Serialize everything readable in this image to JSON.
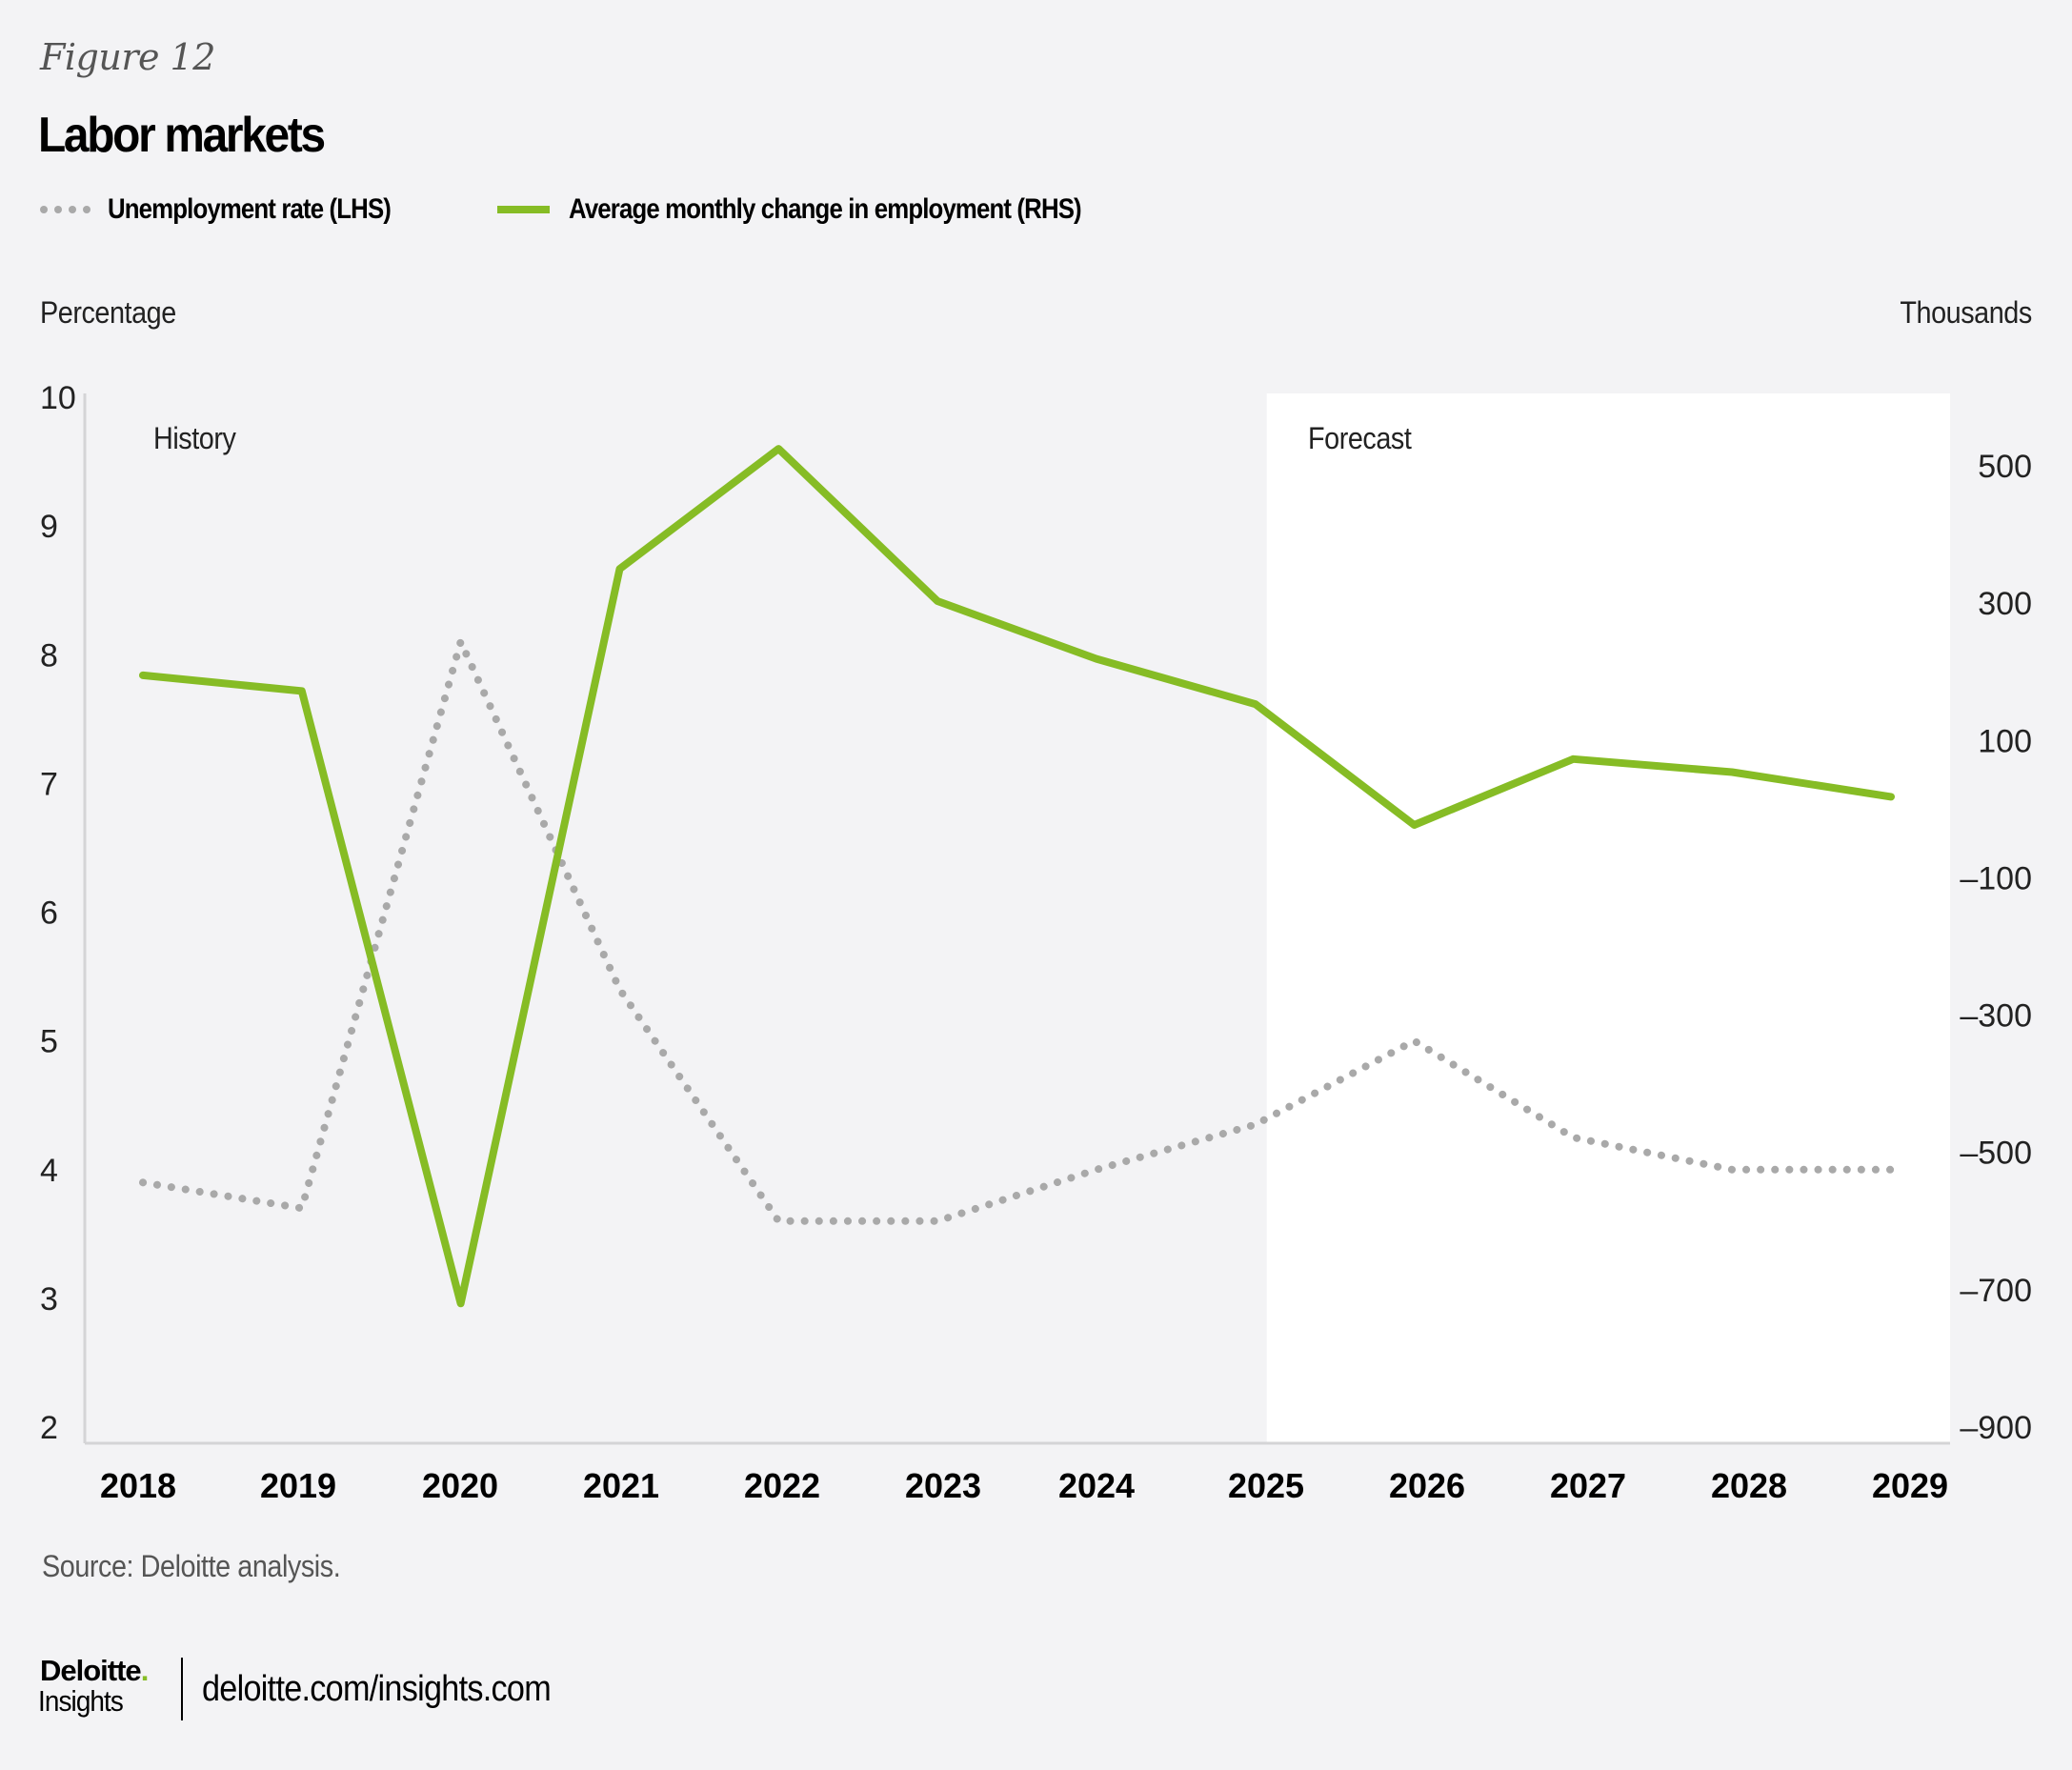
{
  "header": {
    "figure_label": "Figure 12",
    "title": "Labor markets"
  },
  "legend": [
    {
      "label": "Unemployment rate (LHS)",
      "style": "dotted",
      "color": "#a9a9a9"
    },
    {
      "label": "Average monthly change in employment (RHS)",
      "style": "solid",
      "color": "#86bc25"
    }
  ],
  "footer": {
    "source": "Source: Deloitte analysis.",
    "logo_name": "Deloitte",
    "logo_dot": ".",
    "logo_sub": "Insights",
    "url": "deloitte.com/insights.com"
  },
  "colors": {
    "background": "#f3f3f5",
    "forecast_shade": "#ffffff",
    "axis_line": "#d4d4d6",
    "unemployment": "#a9a9a9",
    "employment": "#86bc25"
  },
  "chart_data": {
    "type": "line",
    "title": "Labor markets",
    "x": [
      "2018",
      "2019",
      "2020",
      "2021",
      "2022",
      "2023",
      "2024",
      "2025",
      "2026",
      "2027",
      "2028",
      "2029"
    ],
    "left_axis": {
      "label": "Percentage",
      "range": [
        2,
        10
      ],
      "ticks": [
        "10",
        "9",
        "8",
        "7",
        "6",
        "5",
        "4",
        "3",
        "2"
      ],
      "tick_values": [
        10,
        9,
        8,
        7,
        6,
        5,
        4,
        3,
        2
      ]
    },
    "right_axis": {
      "label": "Thousands",
      "range": [
        -900,
        600
      ],
      "ticks": [
        "500",
        "300",
        "100",
        "–100",
        "–300",
        "–500",
        "–700",
        "–900"
      ],
      "tick_values": [
        500,
        300,
        100,
        -100,
        -300,
        -500,
        -700,
        -900
      ]
    },
    "series": [
      {
        "name": "Unemployment rate (LHS)",
        "axis": "left",
        "style": "dotted",
        "values": [
          3.9,
          3.7,
          8.1,
          5.4,
          3.6,
          3.6,
          4.0,
          4.35,
          5.0,
          4.25,
          4.0,
          4.0
        ]
      },
      {
        "name": "Average monthly change in employment (RHS)",
        "axis": "right",
        "style": "solid",
        "values": [
          195,
          172,
          -720,
          350,
          525,
          303,
          219,
          153,
          -23,
          73,
          54,
          18
        ]
      }
    ],
    "annotations": [
      {
        "text": "History",
        "region": "history"
      },
      {
        "text": "Forecast",
        "region": "forecast",
        "starts_at": "2025"
      }
    ],
    "grid": false,
    "legend_position": "top-left"
  }
}
